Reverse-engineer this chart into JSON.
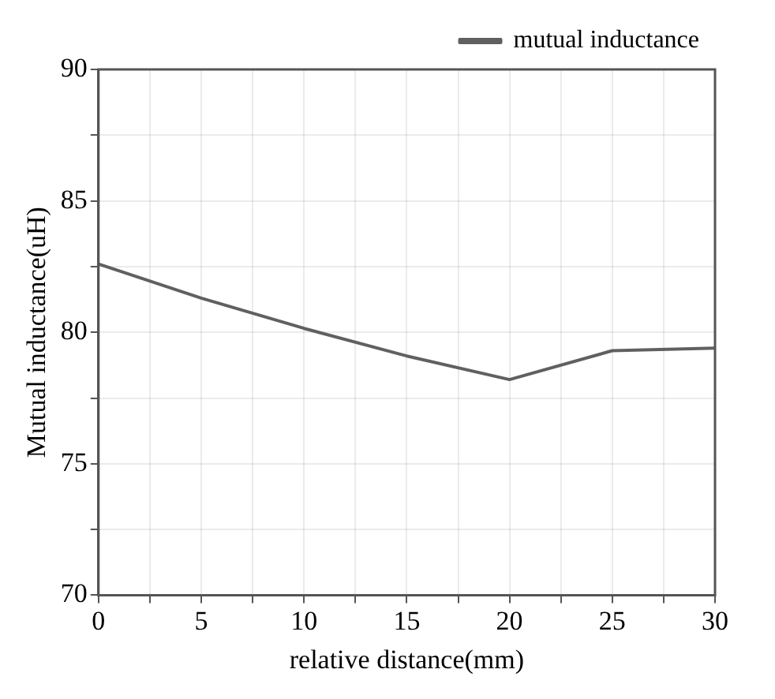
{
  "chart_data": {
    "type": "line",
    "xlabel": "relative distance(mm)",
    "ylabel": "Mutual inductance(uH)",
    "x": [
      0,
      5,
      10,
      15,
      20,
      25,
      30
    ],
    "series": [
      {
        "name": "mutual inductance",
        "color": "#606060",
        "values": [
          82.6,
          81.3,
          80.15,
          79.1,
          78.2,
          79.3,
          79.4
        ]
      }
    ],
    "xlim": [
      0,
      30
    ],
    "xticks": [
      0,
      {
        "value": 2.5,
        "label": null
      },
      5,
      {
        "value": 7.5,
        "label": null
      },
      10,
      {
        "value": 12.5,
        "label": null
      },
      15,
      {
        "value": 17.5,
        "label": null
      },
      20,
      {
        "value": 22.5,
        "label": null
      },
      25,
      {
        "value": 27.5,
        "label": null
      },
      30
    ],
    "ylim": [
      70,
      90
    ],
    "yticks": [
      70,
      {
        "value": 72.5,
        "label": null
      },
      75,
      {
        "value": 77.5,
        "label": null
      },
      80,
      {
        "value": 82.5,
        "label": null
      },
      85,
      {
        "value": 87.5,
        "label": null
      },
      90
    ],
    "grid": true,
    "legend": "top right",
    "marker": "none",
    "line_style": "solid"
  }
}
